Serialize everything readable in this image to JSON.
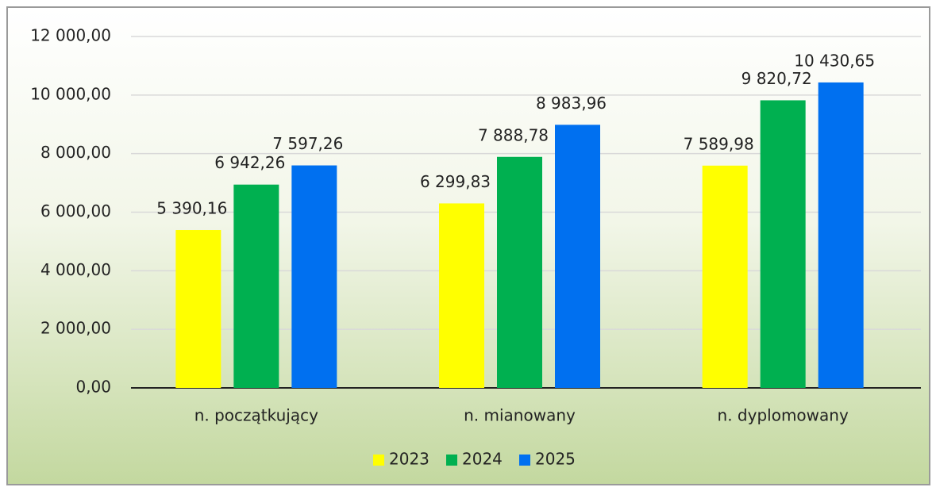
{
  "chart_data": {
    "type": "bar",
    "categories": [
      "n. początkujący",
      "n. mianowany",
      "n. dyplomowany"
    ],
    "series": [
      {
        "name": "2023",
        "color": "#ffff00",
        "values": [
          5390.16,
          6299.83,
          7589.98
        ],
        "value_labels": [
          "5 390,16",
          "6 299,83",
          "7 589,98"
        ]
      },
      {
        "name": "2024",
        "color": "#00b050",
        "values": [
          6942.26,
          7888.78,
          9820.72
        ],
        "value_labels": [
          "6 942,26",
          "7 888,78",
          "9 820,72"
        ]
      },
      {
        "name": "2025",
        "color": "#0070f0",
        "values": [
          7597.26,
          8983.96,
          10430.65
        ],
        "value_labels": [
          "7 597,26",
          "8 983,96",
          "10 430,65"
        ]
      }
    ],
    "ylim": [
      0,
      12000
    ],
    "yticks": [
      {
        "value": 0,
        "label": "0,00"
      },
      {
        "value": 2000,
        "label": "2 000,00"
      },
      {
        "value": 4000,
        "label": "4 000,00"
      },
      {
        "value": 6000,
        "label": "6 000,00"
      },
      {
        "value": 8000,
        "label": "8 000,00"
      },
      {
        "value": 10000,
        "label": "10 000,00"
      },
      {
        "value": 12000,
        "label": "12 000,00"
      }
    ],
    "grid": true,
    "legend": "bottom"
  }
}
